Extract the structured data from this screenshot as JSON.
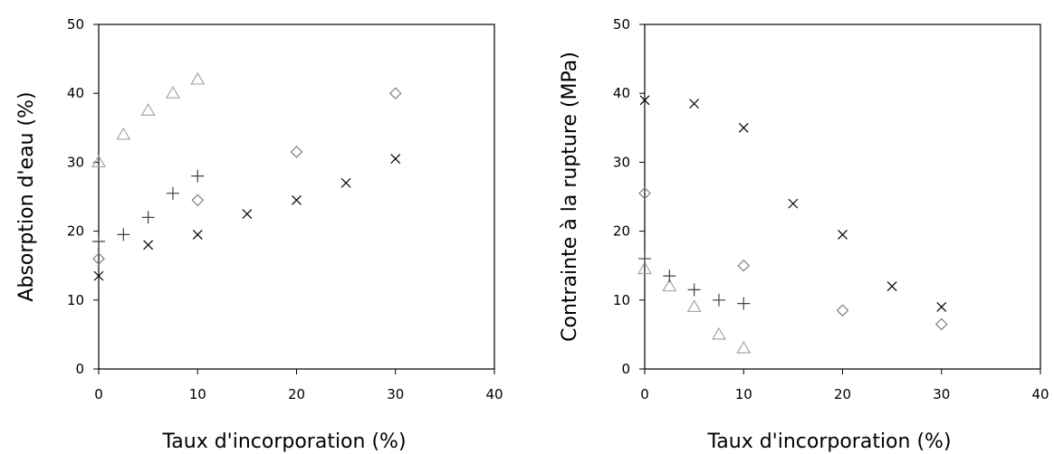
{
  "chart_data": [
    {
      "type": "scatter",
      "xlabel": "Taux d'incorporation (%)",
      "ylabel": "Absorption d'eau (%)",
      "xlim": [
        0,
        40
      ],
      "ylim": [
        0,
        50
      ],
      "xticks": [
        "0",
        "10",
        "20",
        "30",
        "40"
      ],
      "yticks": [
        "0",
        "10",
        "20",
        "30",
        "40",
        "50"
      ],
      "grid": false,
      "series": [
        {
          "marker": "triangle",
          "color": "#a6a6a6",
          "x": [
            0,
            2.5,
            5,
            7.5,
            10
          ],
          "y": [
            30,
            34,
            37.5,
            40,
            42
          ]
        },
        {
          "marker": "plus",
          "color": "#404040",
          "x": [
            0,
            2.5,
            5,
            7.5,
            10
          ],
          "y": [
            18.5,
            19.5,
            22,
            25.5,
            28
          ]
        },
        {
          "marker": "diamond",
          "color": "#808080",
          "x": [
            0,
            10,
            20,
            30
          ],
          "y": [
            16,
            24.5,
            31.5,
            40
          ]
        },
        {
          "marker": "cross",
          "color": "#000000",
          "x": [
            0,
            5,
            10,
            15,
            20,
            25,
            30
          ],
          "y": [
            13.5,
            18,
            19.5,
            22.5,
            24.5,
            27,
            30.5
          ]
        }
      ]
    },
    {
      "type": "scatter",
      "xlabel": "Taux d'incorporation (%)",
      "ylabel": "Contrainte à la rupture (MPa)",
      "xlim": [
        0,
        40
      ],
      "ylim": [
        0,
        50
      ],
      "xticks": [
        "0",
        "10",
        "20",
        "30",
        "40"
      ],
      "yticks": [
        "0",
        "10",
        "20",
        "30",
        "40",
        "50"
      ],
      "grid": false,
      "series": [
        {
          "marker": "triangle",
          "color": "#a6a6a6",
          "x": [
            0,
            2.5,
            5,
            7.5,
            10
          ],
          "y": [
            14.5,
            12,
            9,
            5,
            3
          ]
        },
        {
          "marker": "plus",
          "color": "#404040",
          "x": [
            0,
            2.5,
            5,
            7.5,
            10
          ],
          "y": [
            16,
            13.5,
            11.5,
            10,
            9.5
          ]
        },
        {
          "marker": "diamond",
          "color": "#808080",
          "x": [
            0,
            10,
            20,
            30
          ],
          "y": [
            25.5,
            15,
            8.5,
            6.5
          ]
        },
        {
          "marker": "cross",
          "color": "#000000",
          "x": [
            0,
            5,
            10,
            15,
            20,
            25,
            30
          ],
          "y": [
            39,
            38.5,
            35,
            24,
            19.5,
            12,
            9
          ]
        }
      ]
    }
  ]
}
